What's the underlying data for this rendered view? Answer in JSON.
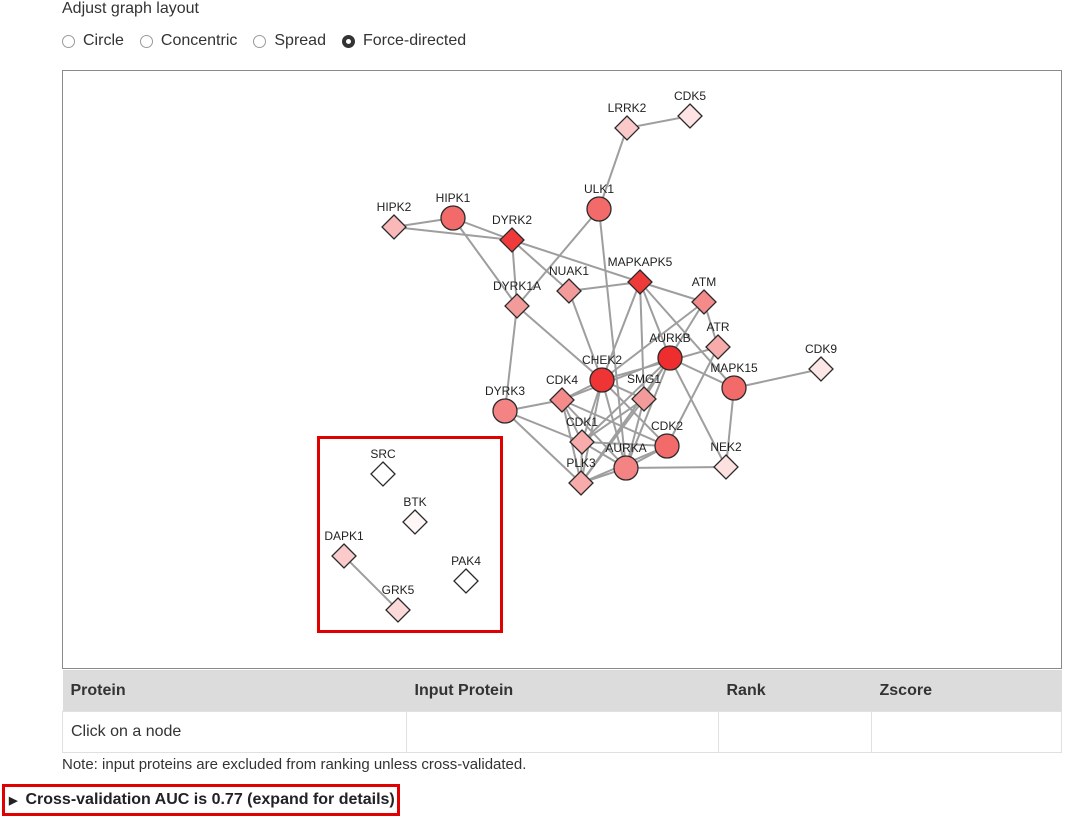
{
  "layout": {
    "title": "Adjust graph layout",
    "options": [
      {
        "label": "Circle",
        "checked": false
      },
      {
        "label": "Concentric",
        "checked": false
      },
      {
        "label": "Spread",
        "checked": false
      },
      {
        "label": "Force-directed",
        "checked": true
      }
    ]
  },
  "graph": {
    "nodes": [
      {
        "id": "CDK5",
        "shape": "diamond",
        "color": "#fde3e3"
      },
      {
        "id": "LRRK2",
        "shape": "diamond",
        "color": "#fbc9c9"
      },
      {
        "id": "HIPK2",
        "shape": "diamond",
        "color": "#f9b9b9"
      },
      {
        "id": "HIPK1",
        "shape": "circle",
        "color": "#f26a6a"
      },
      {
        "id": "ULK1",
        "shape": "circle",
        "color": "#f26a6a"
      },
      {
        "id": "DYRK2",
        "shape": "diamond",
        "color": "#ee3a3a"
      },
      {
        "id": "NUAK1",
        "shape": "diamond",
        "color": "#f39a9a"
      },
      {
        "id": "MAPKAPK5",
        "shape": "diamond",
        "color": "#ee3a3a"
      },
      {
        "id": "DYRK1A",
        "shape": "diamond",
        "color": "#f39a9a"
      },
      {
        "id": "ATM",
        "shape": "diamond",
        "color": "#f48a8a"
      },
      {
        "id": "ATR",
        "shape": "diamond",
        "color": "#f7abab"
      },
      {
        "id": "AURKB",
        "shape": "circle",
        "color": "#ee2e2e"
      },
      {
        "id": "CDK9",
        "shape": "diamond",
        "color": "#fde6e6"
      },
      {
        "id": "CHEK2",
        "shape": "circle",
        "color": "#ee3434"
      },
      {
        "id": "MAPK15",
        "shape": "circle",
        "color": "#f26a6a"
      },
      {
        "id": "DYRK3",
        "shape": "circle",
        "color": "#f48484"
      },
      {
        "id": "CDK4",
        "shape": "diamond",
        "color": "#f48a8a"
      },
      {
        "id": "SMG1",
        "shape": "diamond",
        "color": "#f39a9a"
      },
      {
        "id": "CDK1",
        "shape": "diamond",
        "color": "#f7abab"
      },
      {
        "id": "CDK2",
        "shape": "circle",
        "color": "#f26a6a"
      },
      {
        "id": "AURKA",
        "shape": "circle",
        "color": "#f48484"
      },
      {
        "id": "NEK2",
        "shape": "diamond",
        "color": "#fde0e0"
      },
      {
        "id": "PLK3",
        "shape": "diamond",
        "color": "#f7abab"
      },
      {
        "id": "SRC",
        "shape": "diamond",
        "color": "#ffffff"
      },
      {
        "id": "BTK",
        "shape": "diamond",
        "color": "#fff6f6"
      },
      {
        "id": "DAPK1",
        "shape": "diamond",
        "color": "#fbcaca"
      },
      {
        "id": "PAK4",
        "shape": "diamond",
        "color": "#ffffff"
      },
      {
        "id": "GRK5",
        "shape": "diamond",
        "color": "#fddada"
      }
    ],
    "edges": [
      [
        "CDK5",
        "LRRK2"
      ],
      [
        "LRRK2",
        "ULK1"
      ],
      [
        "HIPK2",
        "HIPK1"
      ],
      [
        "HIPK2",
        "DYRK2"
      ],
      [
        "HIPK1",
        "DYRK2"
      ],
      [
        "HIPK1",
        "DYRK1A"
      ],
      [
        "DYRK2",
        "DYRK1A"
      ],
      [
        "DYRK2",
        "MAPKAPK5"
      ],
      [
        "DYRK2",
        "NUAK1"
      ],
      [
        "ULK1",
        "DYRK1A"
      ],
      [
        "ULK1",
        "AURKA"
      ],
      [
        "NUAK1",
        "MAPKAPK5"
      ],
      [
        "NUAK1",
        "CHEK2"
      ],
      [
        "MAPKAPK5",
        "ATM"
      ],
      [
        "MAPKAPK5",
        "CHEK2"
      ],
      [
        "MAPKAPK5",
        "SMG1"
      ],
      [
        "MAPKAPK5",
        "AURKB"
      ],
      [
        "MAPKAPK5",
        "MAPK15"
      ],
      [
        "DYRK1A",
        "DYRK3"
      ],
      [
        "DYRK1A",
        "CHEK2"
      ],
      [
        "ATM",
        "CHEK2"
      ],
      [
        "ATM",
        "ATR"
      ],
      [
        "ATM",
        "SMG1"
      ],
      [
        "ATR",
        "CHEK2"
      ],
      [
        "ATR",
        "CDK2"
      ],
      [
        "AURKB",
        "MAPK15"
      ],
      [
        "AURKB",
        "CDK1"
      ],
      [
        "AURKB",
        "AURKA"
      ],
      [
        "AURKB",
        "PLK3"
      ],
      [
        "AURKB",
        "NEK2"
      ],
      [
        "AURKB",
        "CDK4"
      ],
      [
        "MAPK15",
        "CDK9"
      ],
      [
        "MAPK15",
        "NEK2"
      ],
      [
        "CHEK2",
        "CDK4"
      ],
      [
        "CHEK2",
        "CDK1"
      ],
      [
        "CHEK2",
        "CDK2"
      ],
      [
        "CHEK2",
        "PLK3"
      ],
      [
        "CHEK2",
        "SMG1"
      ],
      [
        "CHEK2",
        "AURKA"
      ],
      [
        "DYRK3",
        "CDK4"
      ],
      [
        "DYRK3",
        "PLK3"
      ],
      [
        "DYRK3",
        "CDK1"
      ],
      [
        "CDK4",
        "CDK1"
      ],
      [
        "CDK4",
        "PLK3"
      ],
      [
        "CDK4",
        "AURKA"
      ],
      [
        "SMG1",
        "CDK1"
      ],
      [
        "SMG1",
        "AURKA"
      ],
      [
        "SMG1",
        "PLK3"
      ],
      [
        "CDK1",
        "CDK2"
      ],
      [
        "CDK1",
        "PLK3"
      ],
      [
        "CDK1",
        "AURKA"
      ],
      [
        "CDK2",
        "AURKA"
      ],
      [
        "CDK2",
        "PLK3"
      ],
      [
        "CDK2",
        "CDK4"
      ],
      [
        "AURKA",
        "PLK3"
      ],
      [
        "AURKA",
        "NEK2"
      ],
      [
        "DAPK1",
        "GRK5"
      ]
    ]
  },
  "table": {
    "headers": [
      "Protein",
      "Input Protein",
      "Rank",
      "Zscore"
    ],
    "row": [
      "Click on a node",
      "",
      "",
      ""
    ]
  },
  "note": "Note: input proteins are excluded from ranking unless cross-validated.",
  "summary": "Cross-validation AUC is 0.77 (expand for details)"
}
